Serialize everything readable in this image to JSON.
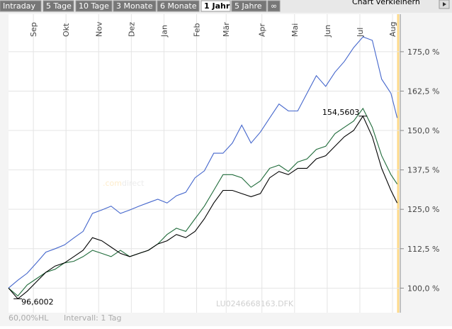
{
  "tabs": {
    "items": [
      "Intraday",
      "5 Tage",
      "10 Tage",
      "3 Monate",
      "6 Monate",
      "1 Jahr",
      "5 Jahre",
      "∞"
    ],
    "selected": 5
  },
  "header_button": "Chart verkleinern",
  "chart_data": {
    "type": "line",
    "logo": [
      ".com",
      "direct"
    ],
    "watermark": "LU0246668163.DFK",
    "footer": [
      "60,00%HL",
      "Intervall: 1 Tag"
    ],
    "x": [
      0,
      6,
      12,
      18,
      24,
      30,
      36,
      42,
      48,
      54,
      60,
      66,
      72,
      78,
      84,
      90,
      96,
      102,
      108,
      114,
      120,
      126,
      132,
      138,
      144,
      150,
      156,
      162,
      168,
      174,
      180,
      186,
      192,
      198,
      204,
      210,
      216,
      222,
      228,
      234,
      240,
      246,
      250
    ],
    "xlim": [
      0,
      252
    ],
    "xticks": [
      {
        "value": 16,
        "label": "Sep"
      },
      {
        "value": 37,
        "label": "Okt"
      },
      {
        "value": 58,
        "label": "Nov"
      },
      {
        "value": 79,
        "label": "Dez"
      },
      {
        "value": 100,
        "label": "Jan"
      },
      {
        "value": 121,
        "label": "Feb"
      },
      {
        "value": 140,
        "label": "Mär"
      },
      {
        "value": 163,
        "label": "Apr"
      },
      {
        "value": 184,
        "label": "Mai"
      },
      {
        "value": 205,
        "label": "Jun"
      },
      {
        "value": 226,
        "label": "Jul"
      },
      {
        "value": 247,
        "label": "Aug"
      }
    ],
    "ylim": [
      92.2,
      186.9
    ],
    "yticks": [
      {
        "value": 100,
        "label": "100,0 %"
      },
      {
        "value": 112.5,
        "label": "112,5 %"
      },
      {
        "value": 125,
        "label": "125,0 %"
      },
      {
        "value": 137.5,
        "label": "137,5 %"
      },
      {
        "value": 150,
        "label": "150,0 %"
      },
      {
        "value": 162.5,
        "label": "162,5 %"
      },
      {
        "value": 175,
        "label": "175,0 %"
      }
    ],
    "grid": true,
    "series": [
      {
        "color": "#4466cc",
        "values": [
          100,
          102.5,
          104.7,
          108,
          111.4,
          112.5,
          113.7,
          115.9,
          118,
          123.7,
          124.8,
          126,
          123.7,
          124.8,
          126,
          127.1,
          128.2,
          127,
          129.3,
          130.4,
          135,
          137.2,
          142.8,
          142.8,
          146,
          151.7,
          146,
          149.5,
          154,
          158.4,
          156.2,
          156.2,
          161.8,
          167.4,
          164,
          168.5,
          171.9,
          176.3,
          179.7,
          178.6,
          166.3,
          161.8,
          154
        ]
      },
      {
        "color": "#1f6b3a",
        "values": [
          100,
          97.5,
          101,
          103,
          105,
          106,
          108,
          108.5,
          110,
          112,
          111,
          110,
          112,
          110,
          111,
          112,
          114,
          117,
          119,
          118,
          122,
          126,
          131,
          136,
          136,
          135,
          132,
          134,
          138,
          139,
          137,
          140,
          141,
          144,
          145,
          149,
          151,
          153,
          157,
          151,
          142,
          136,
          133
        ]
      },
      {
        "color": "#000000",
        "values": [
          100,
          96.6002,
          99,
          102,
          105,
          107,
          108,
          110,
          112,
          116,
          115,
          113,
          111,
          110,
          111,
          112,
          114,
          115,
          117,
          116,
          118,
          122,
          127,
          131,
          131,
          130,
          129,
          130,
          135,
          137,
          136,
          138,
          138,
          141,
          142,
          145,
          148,
          150,
          154.5603,
          148,
          138,
          131,
          127
        ],
        "value_labels": [
          null,
          "96,6002",
          null,
          null,
          null,
          null,
          null,
          null,
          null,
          null,
          null,
          null,
          null,
          null,
          null,
          null,
          null,
          null,
          null,
          null,
          null,
          null,
          null,
          null,
          null,
          null,
          null,
          null,
          null,
          null,
          null,
          null,
          null,
          null,
          null,
          null,
          null,
          null,
          "154,5603",
          null,
          null,
          null,
          null
        ]
      }
    ]
  }
}
